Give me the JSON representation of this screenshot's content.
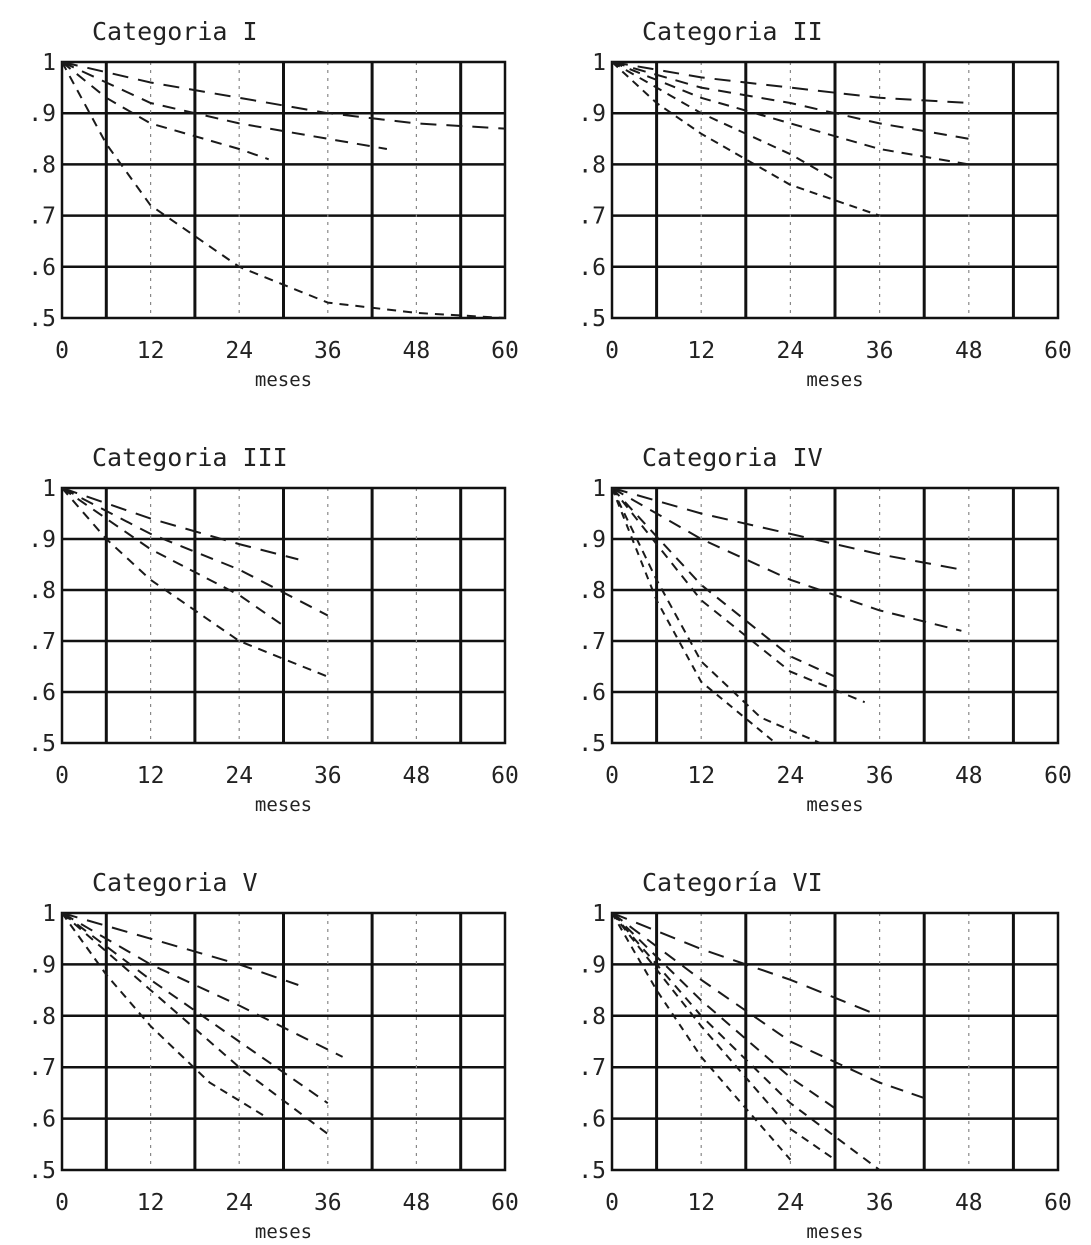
{
  "chart_data": [
    {
      "type": "line",
      "title": "Categoria I",
      "xlabel": "meses",
      "ylabel": "",
      "xlim": [
        0,
        60
      ],
      "ylim": [
        0.5,
        1.0
      ],
      "xticks": [
        "0",
        "12",
        "24",
        "36",
        "48",
        "60"
      ],
      "yticks": [
        "1",
        ".9",
        ".8",
        ".7",
        ".6",
        ".5"
      ],
      "grid": true,
      "series": [
        {
          "x": [
            0,
            6,
            12,
            24,
            36,
            48,
            60
          ],
          "y": [
            1,
            0.98,
            0.96,
            0.93,
            0.9,
            0.88,
            0.87
          ]
        },
        {
          "x": [
            0,
            6,
            12,
            24,
            36,
            44
          ],
          "y": [
            1,
            0.96,
            0.92,
            0.88,
            0.85,
            0.83
          ]
        },
        {
          "x": [
            0,
            6,
            12,
            24,
            28
          ],
          "y": [
            1,
            0.93,
            0.88,
            0.83,
            0.81
          ]
        },
        {
          "x": [
            0,
            3,
            6,
            12,
            24,
            36,
            48,
            60
          ],
          "y": [
            1,
            0.92,
            0.84,
            0.72,
            0.6,
            0.53,
            0.51,
            0.5
          ]
        }
      ]
    },
    {
      "type": "line",
      "title": "Categoria II",
      "xlabel": "meses",
      "ylabel": "",
      "xlim": [
        0,
        60
      ],
      "ylim": [
        0.5,
        1.0
      ],
      "xticks": [
        "0",
        "12",
        "24",
        "36",
        "48",
        "60"
      ],
      "yticks": [
        "1",
        ".9",
        ".8",
        ".7",
        ".6",
        ".5"
      ],
      "grid": true,
      "series": [
        {
          "x": [
            0,
            12,
            24,
            36,
            48
          ],
          "y": [
            1,
            0.97,
            0.95,
            0.93,
            0.92
          ]
        },
        {
          "x": [
            0,
            12,
            24,
            36,
            48
          ],
          "y": [
            1,
            0.95,
            0.92,
            0.88,
            0.85
          ]
        },
        {
          "x": [
            0,
            12,
            24,
            36,
            48
          ],
          "y": [
            1,
            0.93,
            0.88,
            0.83,
            0.8
          ]
        },
        {
          "x": [
            0,
            12,
            24,
            30
          ],
          "y": [
            1,
            0.9,
            0.82,
            0.77
          ]
        },
        {
          "x": [
            0,
            6,
            12,
            24,
            36
          ],
          "y": [
            1,
            0.92,
            0.86,
            0.76,
            0.7
          ]
        }
      ]
    },
    {
      "type": "line",
      "title": "Categoria III",
      "xlabel": "meses",
      "ylabel": "",
      "xlim": [
        0,
        60
      ],
      "ylim": [
        0.5,
        1.0
      ],
      "xticks": [
        "0",
        "12",
        "24",
        "36",
        "48",
        "60"
      ],
      "yticks": [
        "1",
        ".9",
        ".8",
        ".7",
        ".6",
        ".5"
      ],
      "grid": true,
      "series": [
        {
          "x": [
            0,
            12,
            24,
            32
          ],
          "y": [
            1,
            0.94,
            0.89,
            0.86
          ]
        },
        {
          "x": [
            0,
            12,
            24,
            36
          ],
          "y": [
            1,
            0.91,
            0.84,
            0.75
          ]
        },
        {
          "x": [
            0,
            12,
            24,
            30
          ],
          "y": [
            1,
            0.88,
            0.79,
            0.73
          ]
        },
        {
          "x": [
            0,
            6,
            12,
            24,
            36
          ],
          "y": [
            1,
            0.9,
            0.82,
            0.7,
            0.63
          ]
        }
      ]
    },
    {
      "type": "line",
      "title": "Categoria IV",
      "xlabel": "meses",
      "ylabel": "",
      "xlim": [
        0,
        60
      ],
      "ylim": [
        0.5,
        1.0
      ],
      "xticks": [
        "0",
        "12",
        "24",
        "36",
        "48",
        "60"
      ],
      "yticks": [
        "1",
        ".9",
        ".8",
        ".7",
        ".6",
        ".5"
      ],
      "grid": true,
      "series": [
        {
          "x": [
            0,
            12,
            24,
            36,
            47
          ],
          "y": [
            1,
            0.95,
            0.91,
            0.87,
            0.84
          ]
        },
        {
          "x": [
            0,
            12,
            24,
            36,
            47
          ],
          "y": [
            1,
            0.9,
            0.82,
            0.76,
            0.72
          ]
        },
        {
          "x": [
            0,
            12,
            24,
            30
          ],
          "y": [
            1,
            0.81,
            0.67,
            0.63
          ]
        },
        {
          "x": [
            0,
            12,
            24,
            34
          ],
          "y": [
            1,
            0.78,
            0.64,
            0.58
          ]
        },
        {
          "x": [
            0,
            6,
            12,
            20,
            28
          ],
          "y": [
            1,
            0.82,
            0.66,
            0.55,
            0.5
          ]
        },
        {
          "x": [
            0,
            6,
            12,
            22
          ],
          "y": [
            1,
            0.78,
            0.62,
            0.5
          ]
        }
      ]
    },
    {
      "type": "line",
      "title": "Categoria V",
      "xlabel": "meses",
      "ylabel": "",
      "xlim": [
        0,
        60
      ],
      "ylim": [
        0.5,
        1.0
      ],
      "xticks": [
        "0",
        "12",
        "24",
        "36",
        "48",
        "60"
      ],
      "yticks": [
        "1",
        ".9",
        ".8",
        ".7",
        ".6",
        ".5"
      ],
      "grid": true,
      "series": [
        {
          "x": [
            0,
            12,
            24,
            32
          ],
          "y": [
            1,
            0.95,
            0.9,
            0.86
          ]
        },
        {
          "x": [
            0,
            12,
            24,
            38
          ],
          "y": [
            1,
            0.9,
            0.82,
            0.72
          ]
        },
        {
          "x": [
            0,
            12,
            24,
            36
          ],
          "y": [
            1,
            0.87,
            0.75,
            0.63
          ]
        },
        {
          "x": [
            0,
            12,
            24,
            36
          ],
          "y": [
            1,
            0.85,
            0.7,
            0.57
          ]
        },
        {
          "x": [
            0,
            6,
            12,
            20,
            28
          ],
          "y": [
            1,
            0.88,
            0.78,
            0.67,
            0.6
          ]
        }
      ]
    },
    {
      "type": "line",
      "title": "Categoría VI",
      "xlabel": "meses",
      "ylabel": "",
      "xlim": [
        0,
        60
      ],
      "ylim": [
        0.5,
        1.0
      ],
      "xticks": [
        "0",
        "12",
        "24",
        "36",
        "48",
        "60"
      ],
      "yticks": [
        "1",
        ".9",
        ".8",
        ".7",
        ".6",
        ".5"
      ],
      "grid": true,
      "series": [
        {
          "x": [
            0,
            12,
            24,
            36
          ],
          "y": [
            1,
            0.93,
            0.87,
            0.8
          ]
        },
        {
          "x": [
            0,
            12,
            24,
            36,
            42
          ],
          "y": [
            1,
            0.87,
            0.75,
            0.67,
            0.64
          ]
        },
        {
          "x": [
            0,
            12,
            24,
            30
          ],
          "y": [
            1,
            0.83,
            0.68,
            0.62
          ]
        },
        {
          "x": [
            0,
            12,
            24,
            36
          ],
          "y": [
            1,
            0.8,
            0.63,
            0.5
          ]
        },
        {
          "x": [
            0,
            12,
            24,
            30
          ],
          "y": [
            1,
            0.78,
            0.58,
            0.52
          ]
        },
        {
          "x": [
            0,
            6,
            12,
            24
          ],
          "y": [
            1,
            0.85,
            0.72,
            0.52
          ]
        }
      ]
    }
  ]
}
